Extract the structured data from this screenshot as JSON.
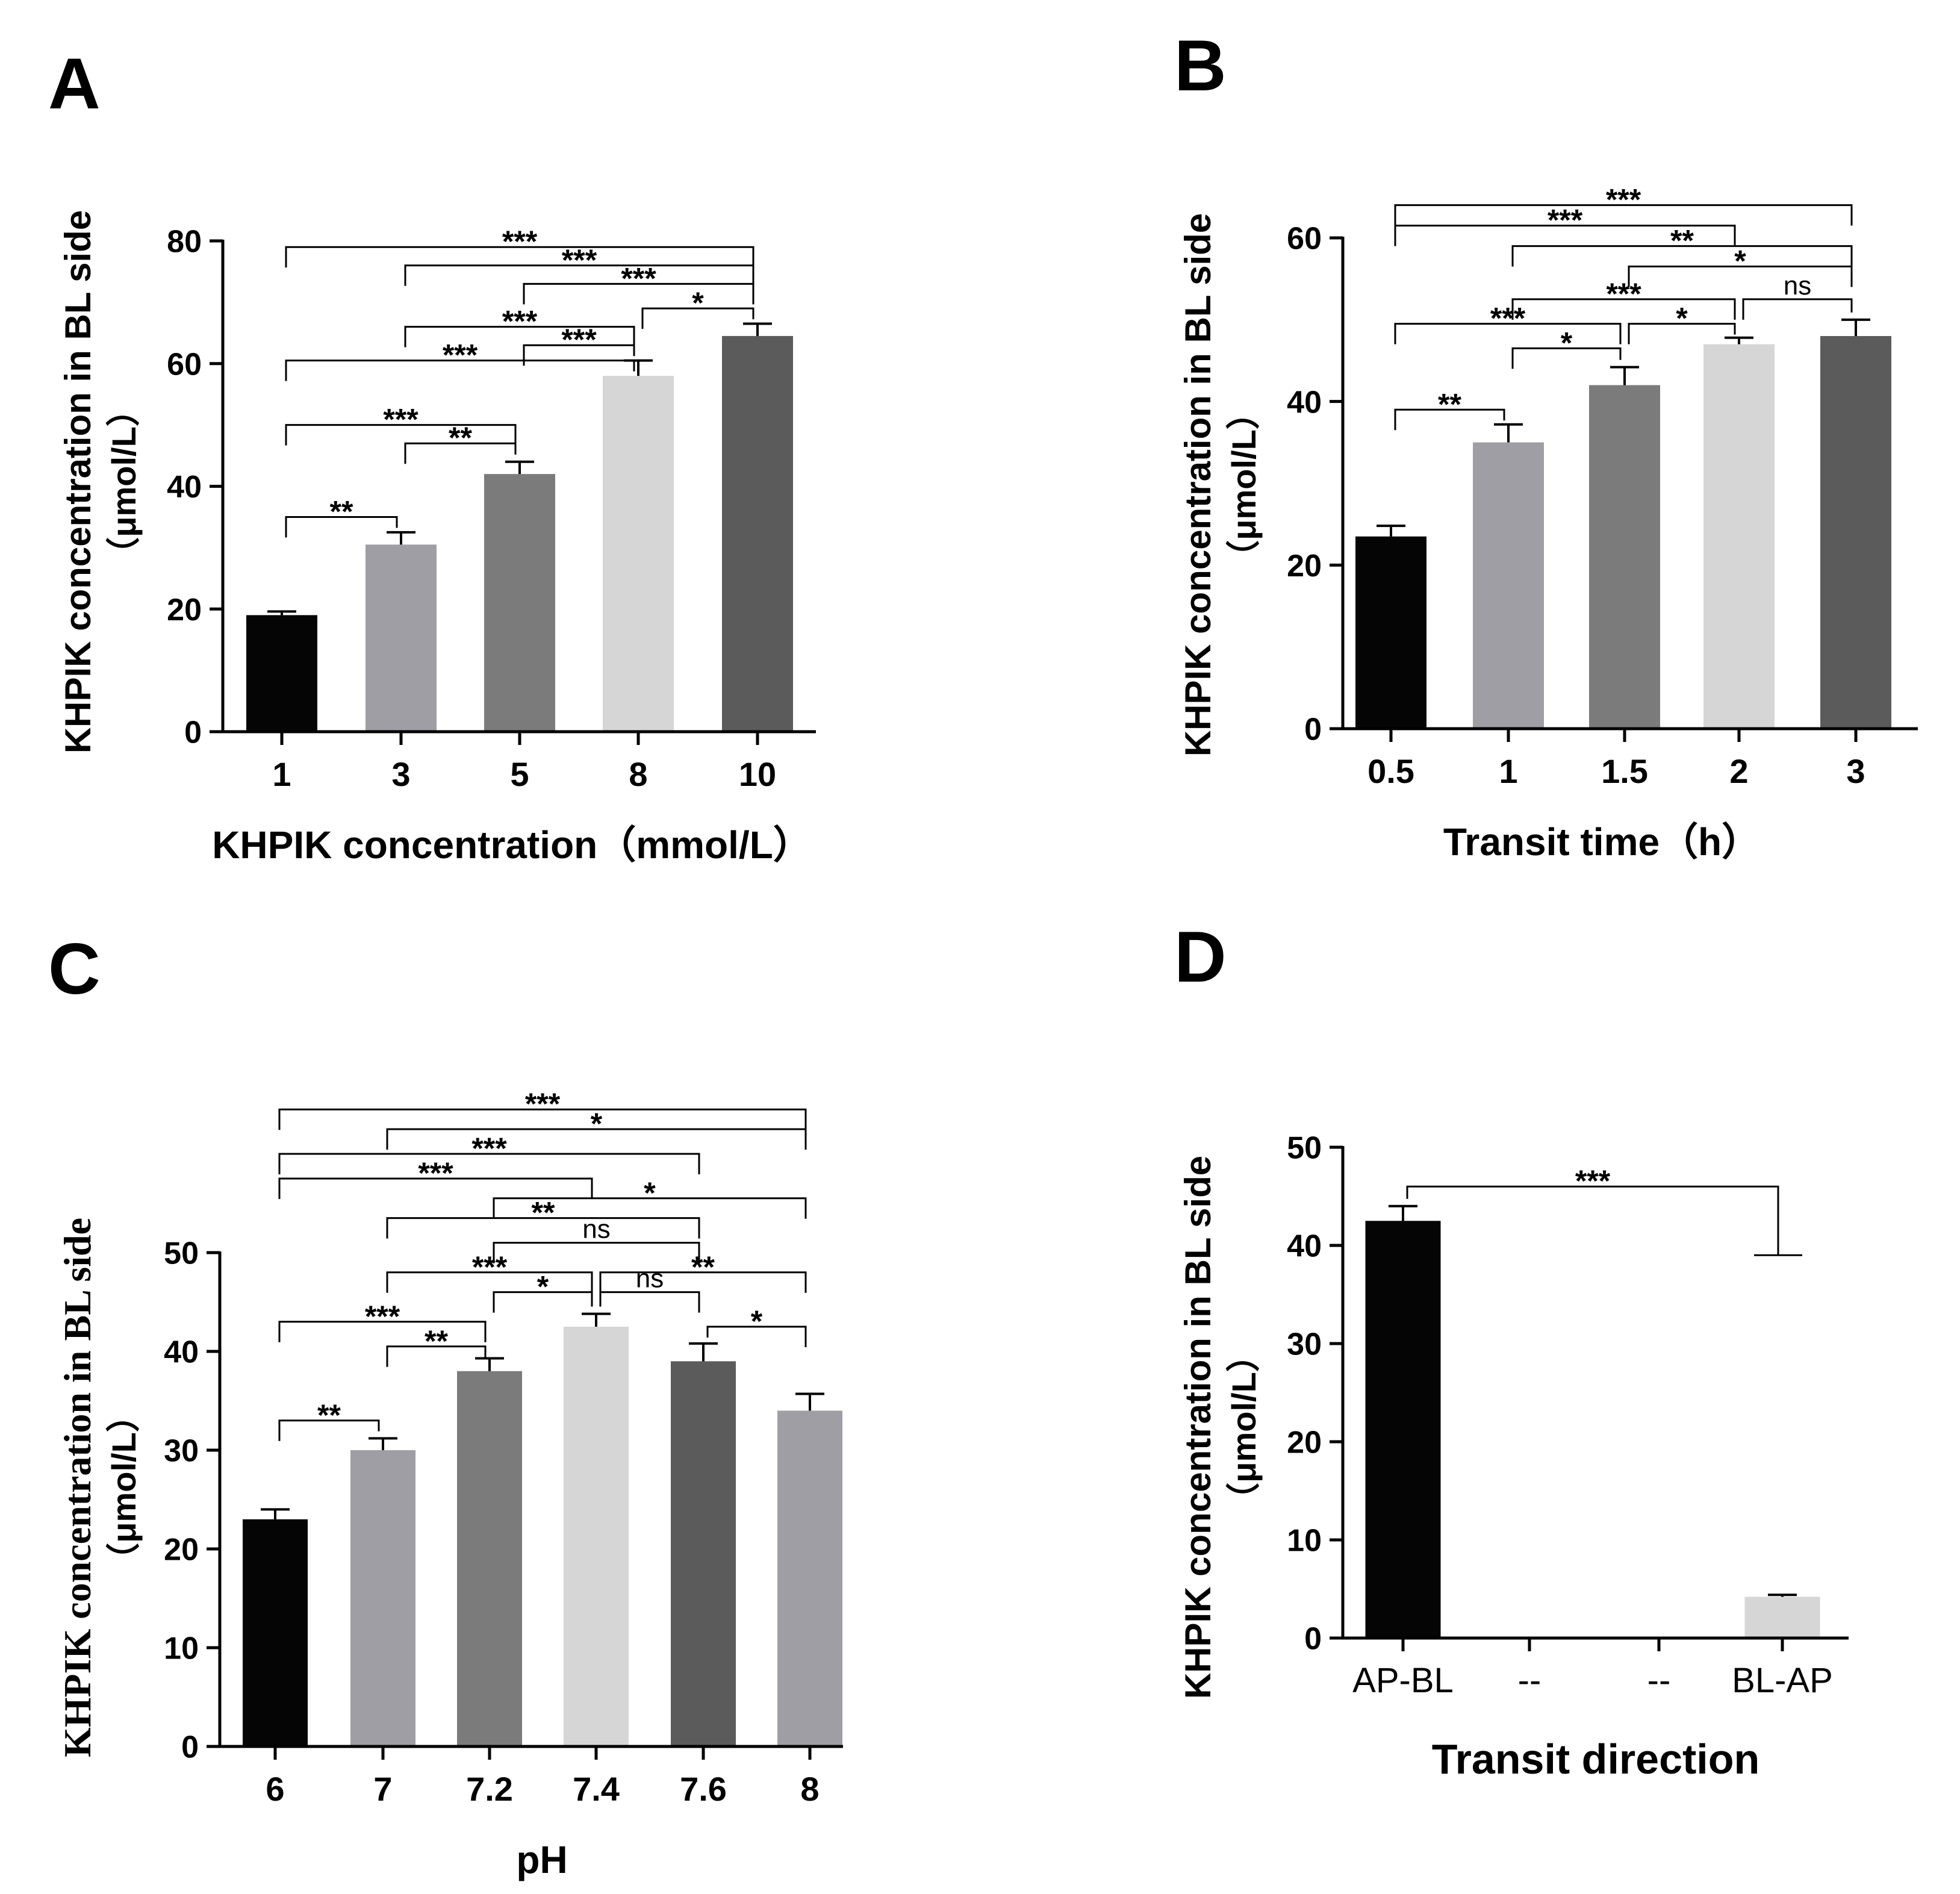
{
  "chart_data": [
    {
      "panel": "A",
      "type": "bar",
      "categories": [
        "1",
        "3",
        "5",
        "8",
        "10"
      ],
      "values": [
        19,
        30.5,
        42,
        58,
        64.5
      ],
      "errors": [
        0.6,
        2,
        2,
        2.5,
        2
      ],
      "colors": [
        "#050505",
        "#9e9ea4",
        "#7b7b7b",
        "#d6d6d6",
        "#5b5b5b"
      ],
      "xlabel": "KHPIK concentration（mmol/L）",
      "ylabel_line1": "KHPIK concentration in BL side",
      "ylabel_line2": "（μmol/L）",
      "ylim": [
        0,
        80
      ],
      "yticks": [
        "0",
        "20",
        "40",
        "60",
        "80"
      ],
      "significance": [
        {
          "from": 0,
          "to": 4,
          "label": "***",
          "y": 79
        },
        {
          "from": 1,
          "to": 4,
          "label": "***",
          "y": 76
        },
        {
          "from": 3,
          "to": 4,
          "label": "*",
          "y": 69
        },
        {
          "from": 2,
          "to": 4,
          "label": "***",
          "y": 73
        },
        {
          "from": 1,
          "to": 3,
          "label": "***",
          "y": 66
        },
        {
          "from": 2,
          "to": 3,
          "label": "***",
          "y": 63
        },
        {
          "from": 0,
          "to": 3,
          "label": "***",
          "y": 60.5
        },
        {
          "from": 0,
          "to": 2,
          "label": "***",
          "y": 50
        },
        {
          "from": 1,
          "to": 2,
          "label": "**",
          "y": 47
        },
        {
          "from": 0,
          "to": 1,
          "label": "**",
          "y": 35
        }
      ]
    },
    {
      "panel": "B",
      "type": "bar",
      "categories": [
        "0.5",
        "1",
        "1.5",
        "2",
        "3"
      ],
      "values": [
        23.5,
        35,
        42,
        47,
        48
      ],
      "errors": [
        1.3,
        2.2,
        2.2,
        0.8,
        2
      ],
      "colors": [
        "#050505",
        "#9e9ea4",
        "#7b7b7b",
        "#d6d6d6",
        "#5b5b5b"
      ],
      "xlabel": "Transit time（h）",
      "ylabel_line1": "KHPIK concentration in BL side",
      "ylabel_line2": "（μmol/L）",
      "ylim": [
        0,
        60
      ],
      "yticks": [
        "0",
        "20",
        "40",
        "60"
      ],
      "significance": [
        {
          "from": 0,
          "to": 4,
          "label": "***",
          "y": 64
        },
        {
          "from": 0,
          "to": 3,
          "label": "***",
          "y": 61.5
        },
        {
          "from": 1,
          "to": 4,
          "label": "**",
          "y": 59
        },
        {
          "from": 2,
          "to": 4,
          "label": "*",
          "y": 56.5
        },
        {
          "from": 1,
          "to": 3,
          "label": "***",
          "y": 52.5
        },
        {
          "from": 3,
          "to": 4,
          "label": "ns",
          "y": 52.5
        },
        {
          "from": 0,
          "to": 2,
          "label": "***",
          "y": 49.5
        },
        {
          "from": 2,
          "to": 3,
          "label": "*",
          "y": 49.5
        },
        {
          "from": 1,
          "to": 2,
          "label": "*",
          "y": 46.5
        },
        {
          "from": 0,
          "to": 1,
          "label": "**",
          "y": 39
        }
      ]
    },
    {
      "panel": "C",
      "type": "bar",
      "categories": [
        "6",
        "7",
        "7.2",
        "7.4",
        "7.6",
        "8"
      ],
      "values": [
        23,
        30,
        38,
        42.5,
        39,
        34
      ],
      "errors": [
        1,
        1.2,
        1.3,
        1.3,
        1.8,
        1.7
      ],
      "colors": [
        "#050505",
        "#9e9ea4",
        "#7b7b7b",
        "#d6d6d6",
        "#5b5b5b",
        "#9e9ea4"
      ],
      "xlabel": "pH",
      "ylabel_line1": "KHPIK concentration in BL side",
      "ylabel_line2": "（μmol/L）",
      "ylim": [
        0,
        50
      ],
      "yticks": [
        "0",
        "10",
        "20",
        "30",
        "40",
        "50"
      ],
      "significance": [
        {
          "from": 0,
          "to": 5,
          "label": "***",
          "y": 64.5
        },
        {
          "from": 1,
          "to": 5,
          "label": "*",
          "y": 62.5
        },
        {
          "from": 0,
          "to": 4,
          "label": "***",
          "y": 60
        },
        {
          "from": 0,
          "to": 3,
          "label": "***",
          "y": 57.5
        },
        {
          "from": 2,
          "to": 5,
          "label": "*",
          "y": 55.5
        },
        {
          "from": 1,
          "to": 4,
          "label": "**",
          "y": 53.5
        },
        {
          "from": 2,
          "to": 4,
          "label": "ns",
          "y": 51
        },
        {
          "from": 1,
          "to": 3,
          "label": "***",
          "y": 48
        },
        {
          "from": 3,
          "to": 5,
          "label": "**",
          "y": 48
        },
        {
          "from": 2,
          "to": 3,
          "label": "*",
          "y": 46
        },
        {
          "from": 3,
          "to": 4,
          "label": "ns",
          "y": 46
        },
        {
          "from": 0,
          "to": 2,
          "label": "***",
          "y": 43
        },
        {
          "from": 1,
          "to": 2,
          "label": "**",
          "y": 40.5
        },
        {
          "from": 4,
          "to": 5,
          "label": "*",
          "y": 42.5
        },
        {
          "from": 0,
          "to": 1,
          "label": "**",
          "y": 33
        }
      ]
    },
    {
      "panel": "D",
      "type": "bar",
      "categories": [
        "AP-BL",
        "--",
        "--",
        "BL-AP"
      ],
      "values": [
        42.5,
        0,
        0,
        4.2
      ],
      "errors": [
        1.5,
        0,
        0,
        0.2
      ],
      "colors": [
        "#050505",
        "#ffffff",
        "#ffffff",
        "#d6d6d6"
      ],
      "xlabel": "Transit direction",
      "ylabel_line1": "KHPIK concentration in BL side",
      "ylabel_line2": "（μmol/L）",
      "ylim": [
        0,
        50
      ],
      "yticks": [
        "0",
        "10",
        "20",
        "30",
        "40",
        "50"
      ],
      "significance": [
        {
          "from": 0,
          "to": 3,
          "label": "***",
          "y": 46,
          "right_end": 39
        }
      ]
    }
  ]
}
